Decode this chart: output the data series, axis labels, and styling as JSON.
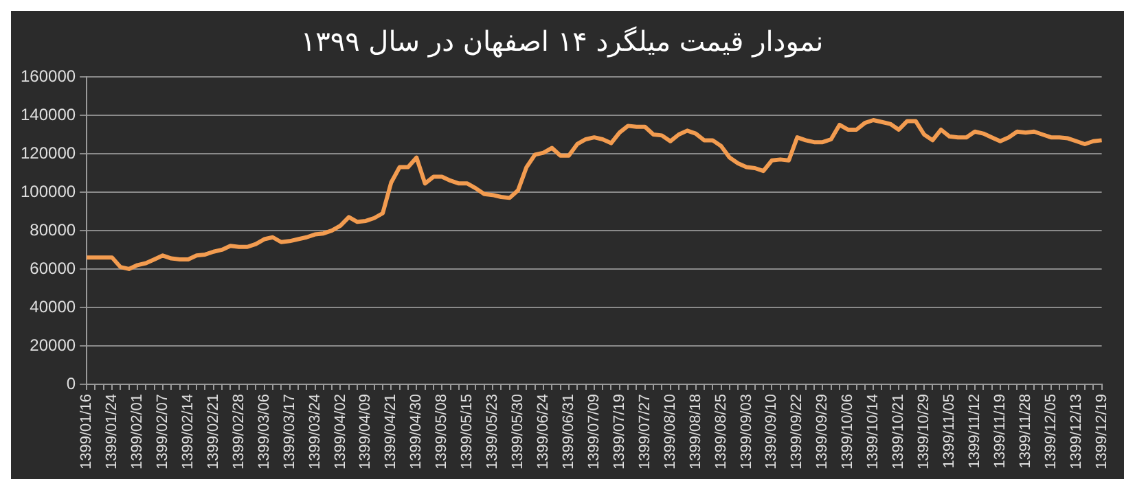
{
  "chart_data": {
    "type": "line",
    "title": "نمودار قیمت میلگرد ۱۴ اصفهان در سال ۱۳۹۹",
    "categories": [
      "1399/01/16",
      null,
      null,
      "1399/01/24",
      null,
      null,
      "1399/02/01",
      null,
      null,
      "1399/02/07",
      null,
      null,
      "1399/02/14",
      null,
      null,
      "1399/02/21",
      null,
      null,
      "1399/02/28",
      null,
      null,
      "1399/03/06",
      null,
      null,
      "1399/03/17",
      null,
      null,
      "1399/03/24",
      null,
      null,
      "1399/04/02",
      null,
      null,
      "1399/04/09",
      null,
      null,
      "1399/04/21",
      null,
      null,
      "1399/04/30",
      null,
      null,
      "1399/05/08",
      null,
      null,
      "1399/05/15",
      null,
      null,
      "1399/05/23",
      null,
      null,
      "1399/05/30",
      null,
      null,
      "1399/06/24",
      null,
      null,
      "1399/06/31",
      null,
      null,
      "1399/07/09",
      null,
      null,
      "1399/07/19",
      null,
      null,
      "1399/07/27",
      null,
      null,
      "1399/08/10",
      null,
      null,
      "1399/08/18",
      null,
      null,
      "1399/08/25",
      null,
      null,
      "1399/09/03",
      null,
      null,
      "1399/09/10",
      null,
      null,
      "1399/09/22",
      null,
      null,
      "1399/09/29",
      null,
      null,
      "1399/10/06",
      null,
      null,
      "1399/10/14",
      null,
      null,
      "1399/10/21",
      null,
      null,
      "1399/10/29",
      null,
      null,
      "1399/11/05",
      null,
      null,
      "1399/11/12",
      null,
      null,
      "1399/11/19",
      null,
      null,
      "1399/11/28",
      null,
      null,
      "1399/12/05",
      null,
      null,
      "1399/12/13",
      null,
      null,
      "1399/12/19"
    ],
    "series": [
      {
        "color": "#f39c50",
        "values": [
          66000,
          66000,
          66000,
          66000,
          61000,
          60000,
          62000,
          63000,
          65000,
          67000,
          65500,
          65000,
          65000,
          67000,
          67500,
          69000,
          70000,
          72000,
          71500,
          71500,
          73000,
          75500,
          76500,
          74000,
          74500,
          75500,
          76500,
          78000,
          78500,
          80000,
          82500,
          87000,
          84500,
          85000,
          86500,
          89000,
          105000,
          113000,
          113000,
          118000,
          104500,
          108000,
          108000,
          106000,
          104500,
          104500,
          102000,
          99000,
          98500,
          97500,
          97000,
          101000,
          113000,
          119500,
          120500,
          123000,
          119000,
          119000,
          125000,
          127500,
          128500,
          127500,
          125500,
          131000,
          134500,
          134000,
          134000,
          130000,
          129500,
          126500,
          130000,
          132000,
          130500,
          127000,
          127000,
          124000,
          118000,
          115000,
          113000,
          112500,
          111000,
          116500,
          117000,
          116500,
          128500,
          127000,
          126000,
          126000,
          127500,
          135000,
          132500,
          132500,
          136000,
          137500,
          136500,
          135500,
          132500,
          137000,
          137000,
          130000,
          127000,
          132500,
          129000,
          128500,
          128500,
          131500,
          130500,
          128500,
          126500,
          128500,
          131500,
          131000,
          131500,
          130000,
          128500,
          128500,
          128000,
          126500,
          125000,
          126500,
          127000
        ]
      }
    ],
    "ylim": [
      0,
      160000
    ],
    "yticks": [
      0,
      20000,
      40000,
      60000,
      80000,
      100000,
      120000,
      140000,
      160000
    ],
    "grid": "y",
    "legend": false,
    "marker": "none",
    "line_style": "solid"
  }
}
